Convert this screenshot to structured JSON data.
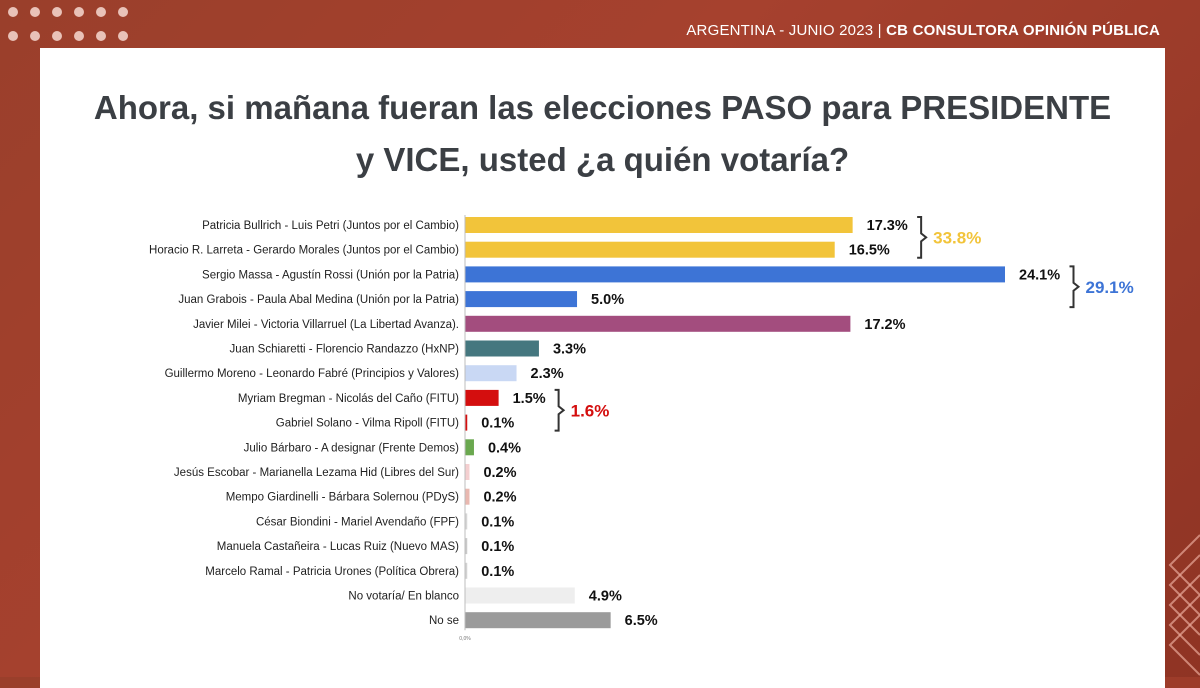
{
  "header": {
    "left_text": "ARGENTINA  - JUNIO 2023 |",
    "brand_text": "CB CONSULTORA OPINIÓN PÚBLICA"
  },
  "title_line1": "Ahora, si mañana fueran las elecciones PASO para PRESIDENTE",
  "title_line2": "y VICE, usted ¿a quién votaría?",
  "chart_data": {
    "type": "bar",
    "orientation": "horizontal",
    "xlim": [
      0,
      24.1
    ],
    "x_tick_label": "0,0%",
    "grid": false,
    "categories": [
      "Patricia Bullrich - Luis Petri (Juntos por el Cambio)",
      "Horacio R. Larreta - Gerardo Morales (Juntos por el Cambio)",
      "Sergio Massa - Agustín Rossi (Unión por la Patria)",
      "Juan Grabois - Paula Abal Medina (Unión por la Patria)",
      "Javier Milei - Victoria Villarruel (La Libertad Avanza).",
      "Juan Schiaretti - Florencio Randazzo (HxNP)",
      "Guillermo Moreno - Leonardo Fabré (Principios y Valores)",
      "Myriam Bregman - Nicolás del Caño (FITU)",
      "Gabriel Solano - Vilma Ripoll (FITU)",
      "Julio Bárbaro - A designar (Frente Demos)",
      "Jesús Escobar - Marianella Lezama Hid (Libres del Sur)",
      "Mempo Giardinelli - Bárbara Solernou (PDyS)",
      "César Biondini - Mariel Avendaño (FPF)",
      "Manuela Castañeira - Lucas Ruiz (Nuevo MAS)",
      "Marcelo Ramal - Patricia Urones (Política Obrera)",
      "No votaría/ En blanco",
      "No se"
    ],
    "values": [
      17.3,
      16.5,
      24.1,
      5.0,
      17.2,
      3.3,
      2.3,
      1.5,
      0.1,
      0.4,
      0.2,
      0.2,
      0.1,
      0.1,
      0.1,
      4.9,
      6.5
    ],
    "value_labels": [
      "17.3%",
      "16.5%",
      "24.1%",
      "5.0%",
      "17.2%",
      "3.3%",
      "2.3%",
      "1.5%",
      "0.1%",
      "0.4%",
      "0.2%",
      "0.2%",
      "0.1%",
      "0.1%",
      "0.1%",
      "4.9%",
      "6.5%"
    ],
    "colors": [
      "#f2c43a",
      "#f2c43a",
      "#3d74d6",
      "#3d74d6",
      "#a34d7e",
      "#45777f",
      "#c9d8f4",
      "#d40e0e",
      "#d40e0e",
      "#6aa84f",
      "#f4cfd0",
      "#e9b8b0",
      "#d6d6d6",
      "#c9c9c9",
      "#d2d2d2",
      "#eeeeee",
      "#9b9b9b"
    ],
    "groups": [
      {
        "label": "33.8%",
        "from": 0,
        "to": 1,
        "color": "#f2c43a"
      },
      {
        "label": "29.1%",
        "from": 2,
        "to": 3,
        "color": "#3d74d6"
      },
      {
        "label": "1.6%",
        "from": 7,
        "to": 8,
        "color": "#d40e0e"
      }
    ]
  }
}
